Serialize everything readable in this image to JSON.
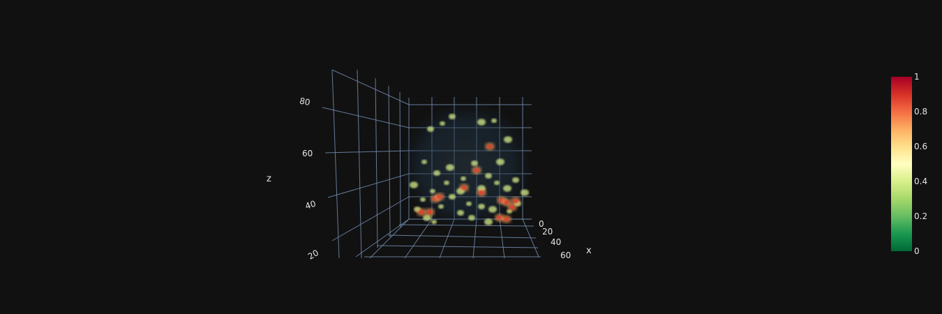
{
  "chart_data": {
    "type": "volume",
    "colorscale": [
      "#006837",
      "#1a9850",
      "#66bd63",
      "#a6d96a",
      "#d9ef8b",
      "#ffffbf",
      "#fee08b",
      "#fdae61",
      "#f46d43",
      "#d73027",
      "#a50026"
    ],
    "colorbar": {
      "min": 0,
      "max": 1,
      "ticks": [
        "0",
        "0.2",
        "0.4",
        "0.6",
        "0.8",
        "1"
      ]
    },
    "axes": {
      "x": {
        "title": "x",
        "ticks": [
          "0",
          "20",
          "40",
          "60"
        ],
        "range": [
          0,
          60
        ]
      },
      "z": {
        "title": "z",
        "ticks": [
          "20",
          "40",
          "60",
          "80"
        ],
        "range": [
          20,
          80
        ]
      }
    },
    "background": "#111111",
    "grid_color": "#6f87a8"
  }
}
